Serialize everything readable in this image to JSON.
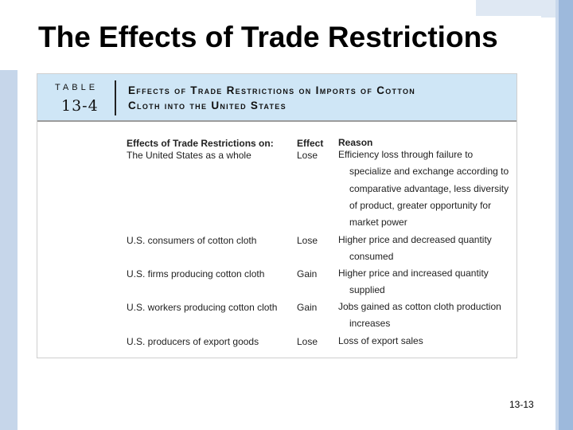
{
  "slide": {
    "title": "The Effects of Trade Restrictions",
    "number": "13-13"
  },
  "table": {
    "label": "TABLE",
    "number": "13-4",
    "title_line1": "Effects of Trade Restrictions on Imports of Cotton",
    "title_line2": "Cloth into the United States",
    "columns": [
      "Effects of Trade Restrictions on:",
      "Effect",
      "Reason"
    ],
    "rows": [
      {
        "group": "The United States as a whole",
        "effect": "Lose",
        "reason": [
          "Efficiency loss through failure to",
          "specialize and exchange according to",
          "comparative advantage, less diversity",
          "of product, greater opportunity for",
          "market power"
        ]
      },
      {
        "group": "U.S. consumers of cotton cloth",
        "effect": "Lose",
        "reason": [
          "Higher price and decreased quantity",
          "consumed"
        ]
      },
      {
        "group": "U.S. firms producing cotton cloth",
        "effect": "Gain",
        "reason": [
          "Higher price and increased quantity",
          "supplied"
        ]
      },
      {
        "group": "U.S. workers producing cotton cloth",
        "effect": "Gain",
        "reason": [
          "Jobs gained as cotton cloth production",
          "increases"
        ]
      },
      {
        "group": "U.S. producers of export goods",
        "effect": "Lose",
        "reason": [
          "Loss of export sales"
        ]
      }
    ]
  }
}
